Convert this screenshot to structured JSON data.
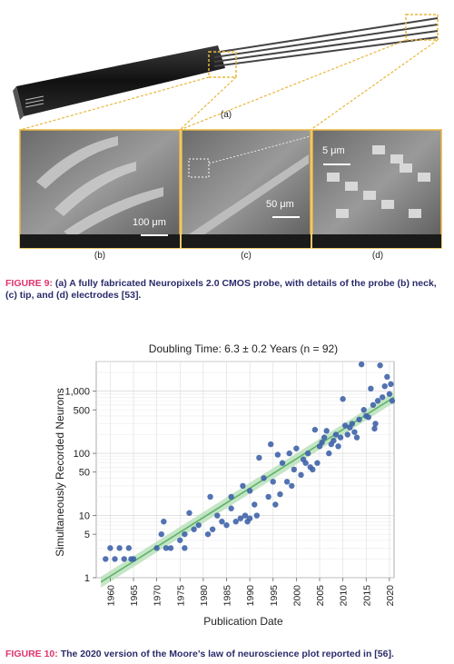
{
  "figure9": {
    "panel_labels": [
      "(a)",
      "(b)",
      "(c)",
      "(d)"
    ],
    "scalebars": {
      "b": "100 μm",
      "c": "50 μm",
      "d": "5 μm"
    },
    "caption_label": "FIGURE 9:",
    "caption_text": "(a) A fully fabricated Neuropixels 2.0 CMOS probe, with details of the probe (b) neck, (c) tip, and (d) electrodes [53]."
  },
  "figure10": {
    "caption_label": "FIGURE 10:",
    "caption_text": "The 2020 version of the Moore’s law of neuroscience plot reported in [56]."
  },
  "chart_data": {
    "type": "scatter",
    "title": "Doubling Time: 6.3 ± 0.2 Years (n = 92)",
    "xlabel": "Publication Date",
    "ylabel": "Simultaneously Recorded Neurons",
    "xlim": [
      1957,
      2021
    ],
    "ylim": [
      1,
      3000
    ],
    "yscale": "log",
    "x_ticks": [
      1960,
      1965,
      1970,
      1975,
      1980,
      1985,
      1990,
      1995,
      2000,
      2005,
      2010,
      2015,
      2020
    ],
    "y_ticks": [
      1,
      5,
      10,
      50,
      100,
      500,
      1000
    ],
    "y_tick_labels": [
      "1",
      "5",
      "10",
      "50",
      "100",
      "500",
      "1,000"
    ],
    "grid": true,
    "colors": {
      "points": "#3f63a8",
      "trend": "#5fb36a",
      "band": "#b7e0b8"
    },
    "trend": {
      "x": [
        1958,
        2021
      ],
      "y": [
        0.85,
        800
      ]
    },
    "points": [
      [
        1959,
        2
      ],
      [
        1960,
        3
      ],
      [
        1961,
        2
      ],
      [
        1962,
        3
      ],
      [
        1963,
        2
      ],
      [
        1964,
        3
      ],
      [
        1964.5,
        2
      ],
      [
        1965,
        2
      ],
      [
        1971,
        5
      ],
      [
        1971.5,
        8
      ],
      [
        1970,
        3
      ],
      [
        1972,
        3
      ],
      [
        1973,
        3
      ],
      [
        1975,
        4
      ],
      [
        1976,
        5
      ],
      [
        1976,
        3
      ],
      [
        1977,
        11
      ],
      [
        1978,
        6
      ],
      [
        1979,
        7
      ],
      [
        1981,
        5
      ],
      [
        1981.5,
        20
      ],
      [
        1982,
        6
      ],
      [
        1983,
        10
      ],
      [
        1984,
        8
      ],
      [
        1985,
        7
      ],
      [
        1986,
        13
      ],
      [
        1986,
        20
      ],
      [
        1987,
        8
      ],
      [
        1988,
        9
      ],
      [
        1988.5,
        30
      ],
      [
        1989,
        10
      ],
      [
        1989.5,
        8
      ],
      [
        1990,
        9
      ],
      [
        1990,
        25
      ],
      [
        1991,
        15
      ],
      [
        1991.5,
        10
      ],
      [
        1992,
        85
      ],
      [
        1993,
        40
      ],
      [
        1994,
        20
      ],
      [
        1994.5,
        140
      ],
      [
        1995,
        35
      ],
      [
        1995.5,
        15
      ],
      [
        1996,
        95
      ],
      [
        1996.5,
        22
      ],
      [
        1997,
        70
      ],
      [
        1998,
        35
      ],
      [
        1998.5,
        100
      ],
      [
        1999,
        30
      ],
      [
        1999.5,
        55
      ],
      [
        2000,
        120
      ],
      [
        2001,
        45
      ],
      [
        2001.5,
        80
      ],
      [
        2002,
        70
      ],
      [
        2002.5,
        100
      ],
      [
        2003,
        60
      ],
      [
        2003.5,
        55
      ],
      [
        2004,
        240
      ],
      [
        2004.5,
        70
      ],
      [
        2005,
        130
      ],
      [
        2005.5,
        150
      ],
      [
        2006,
        180
      ],
      [
        2006.5,
        230
      ],
      [
        2007,
        100
      ],
      [
        2007.5,
        140
      ],
      [
        2008,
        160
      ],
      [
        2008.5,
        200
      ],
      [
        2009,
        130
      ],
      [
        2009.5,
        180
      ],
      [
        2010,
        750
      ],
      [
        2010.5,
        280
      ],
      [
        2011,
        200
      ],
      [
        2011.5,
        260
      ],
      [
        2012,
        300
      ],
      [
        2012.5,
        220
      ],
      [
        2013,
        180
      ],
      [
        2013.5,
        350
      ],
      [
        2014,
        2700
      ],
      [
        2014.5,
        500
      ],
      [
        2015,
        400
      ],
      [
        2015.5,
        380
      ],
      [
        2016,
        1100
      ],
      [
        2016.5,
        600
      ],
      [
        2017,
        300
      ],
      [
        2017.5,
        700
      ],
      [
        2018,
        2600
      ],
      [
        2018.5,
        800
      ],
      [
        2019,
        1200
      ],
      [
        2019.5,
        1700
      ],
      [
        2020,
        900
      ],
      [
        2020.3,
        1300
      ],
      [
        2020.6,
        700
      ],
      [
        2016.8,
        250
      ]
    ]
  }
}
